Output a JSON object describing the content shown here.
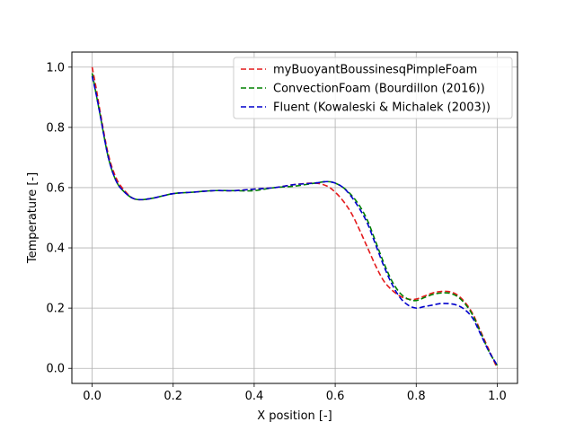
{
  "chart_data": {
    "type": "line",
    "title": "",
    "xlabel": "X position [-]",
    "ylabel": "Temperature [-]",
    "xlim": [
      -0.05,
      1.05
    ],
    "ylim": [
      -0.05,
      1.05
    ],
    "grid": true,
    "legend_position": "top-right",
    "x_ticks": [
      0.0,
      0.2,
      0.4,
      0.6,
      0.8,
      1.0
    ],
    "x_tick_labels": [
      "0.0",
      "0.2",
      "0.4",
      "0.6",
      "0.8",
      "1.0"
    ],
    "y_ticks": [
      0.0,
      0.2,
      0.4,
      0.6,
      0.8,
      1.0
    ],
    "y_tick_labels": [
      "0.0",
      "0.2",
      "0.4",
      "0.6",
      "0.8",
      "1.0"
    ],
    "series": [
      {
        "name": "myBuoyantBoussinesqPimpleFoam",
        "color": "#e41a1c",
        "style": "dashed",
        "x": [
          0.0,
          0.01,
          0.02,
          0.04,
          0.06,
          0.08,
          0.1,
          0.12,
          0.15,
          0.2,
          0.25,
          0.3,
          0.35,
          0.4,
          0.45,
          0.5,
          0.55,
          0.58,
          0.6,
          0.62,
          0.64,
          0.66,
          0.68,
          0.7,
          0.72,
          0.74,
          0.76,
          0.78,
          0.8,
          0.82,
          0.84,
          0.86,
          0.88,
          0.9,
          0.92,
          0.94,
          0.96,
          0.98,
          1.0
        ],
        "y": [
          1.0,
          0.93,
          0.85,
          0.71,
          0.63,
          0.59,
          0.565,
          0.56,
          0.565,
          0.58,
          0.585,
          0.59,
          0.59,
          0.595,
          0.6,
          0.61,
          0.615,
          0.605,
          0.585,
          0.555,
          0.515,
          0.46,
          0.4,
          0.34,
          0.29,
          0.26,
          0.24,
          0.23,
          0.23,
          0.24,
          0.25,
          0.255,
          0.255,
          0.245,
          0.22,
          0.18,
          0.12,
          0.06,
          0.0
        ]
      },
      {
        "name": "ConvectionFoam (Bourdillon (2016))",
        "color": "#008000",
        "style": "dashed",
        "x": [
          0.0,
          0.01,
          0.02,
          0.04,
          0.06,
          0.08,
          0.1,
          0.12,
          0.15,
          0.2,
          0.25,
          0.3,
          0.35,
          0.4,
          0.45,
          0.5,
          0.55,
          0.58,
          0.6,
          0.62,
          0.64,
          0.66,
          0.68,
          0.7,
          0.72,
          0.74,
          0.76,
          0.78,
          0.8,
          0.82,
          0.84,
          0.86,
          0.88,
          0.9,
          0.92,
          0.94,
          0.96,
          0.98,
          1.0
        ],
        "y": [
          0.98,
          0.91,
          0.84,
          0.7,
          0.62,
          0.585,
          0.565,
          0.56,
          0.565,
          0.58,
          0.585,
          0.59,
          0.59,
          0.59,
          0.6,
          0.605,
          0.615,
          0.62,
          0.615,
          0.6,
          0.575,
          0.54,
          0.49,
          0.42,
          0.35,
          0.29,
          0.25,
          0.23,
          0.225,
          0.235,
          0.245,
          0.25,
          0.25,
          0.24,
          0.215,
          0.175,
          0.115,
          0.055,
          0.01
        ]
      },
      {
        "name": "Fluent (Kowaleski & Michalek (2003))",
        "color": "#0000cc",
        "style": "dashed",
        "x": [
          0.0,
          0.01,
          0.02,
          0.04,
          0.06,
          0.08,
          0.1,
          0.12,
          0.15,
          0.2,
          0.25,
          0.3,
          0.35,
          0.4,
          0.45,
          0.5,
          0.55,
          0.58,
          0.6,
          0.62,
          0.64,
          0.66,
          0.68,
          0.7,
          0.72,
          0.74,
          0.76,
          0.78,
          0.8,
          0.82,
          0.84,
          0.86,
          0.88,
          0.9,
          0.92,
          0.94,
          0.96,
          0.98,
          1.0
        ],
        "y": [
          0.97,
          0.91,
          0.84,
          0.7,
          0.62,
          0.585,
          0.565,
          0.56,
          0.565,
          0.58,
          0.585,
          0.59,
          0.59,
          0.595,
          0.6,
          0.61,
          0.615,
          0.62,
          0.615,
          0.6,
          0.57,
          0.53,
          0.48,
          0.41,
          0.34,
          0.28,
          0.235,
          0.21,
          0.2,
          0.205,
          0.21,
          0.215,
          0.215,
          0.21,
          0.195,
          0.165,
          0.11,
          0.055,
          0.01
        ]
      }
    ]
  }
}
